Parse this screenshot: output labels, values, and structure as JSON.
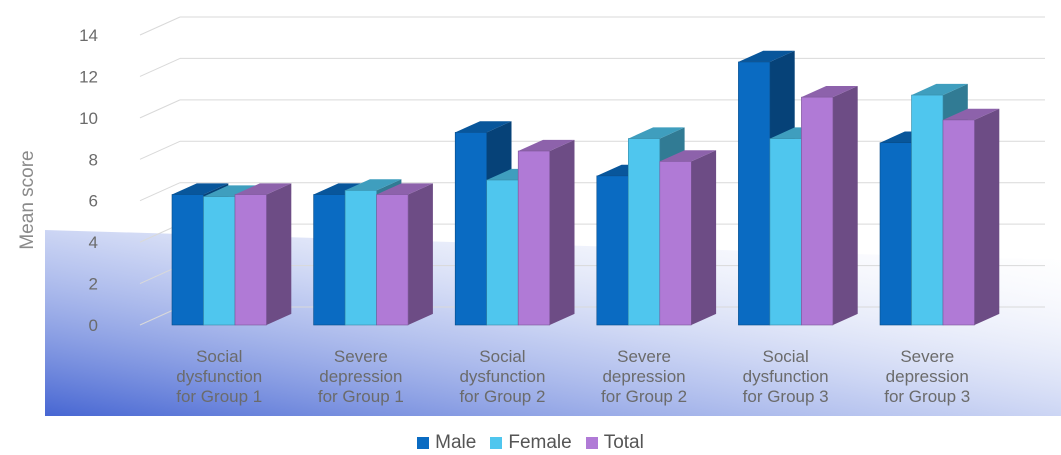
{
  "chart_data": {
    "type": "bar",
    "ylabel": "Mean score",
    "ylim": [
      0,
      14
    ],
    "yticks": [
      "0",
      "2",
      "4",
      "6",
      "8",
      "10",
      "12",
      "14"
    ],
    "categories": [
      [
        "Social",
        "dysfunction",
        "for Group 1"
      ],
      [
        "Severe",
        "depression",
        "for Group 1"
      ],
      [
        "Social",
        "dysfunction",
        "for Group 2"
      ],
      [
        "Severe",
        "depression",
        "for Group 2"
      ],
      [
        "Social",
        "dysfunction",
        "for Group 3"
      ],
      [
        "Severe",
        "depression",
        "for Group 3"
      ]
    ],
    "series": [
      {
        "name": "Male",
        "color": "#0a6bc2",
        "values": [
          6.3,
          6.3,
          9.3,
          7.2,
          12.7,
          8.8
        ]
      },
      {
        "name": "Female",
        "color": "#4fc6ee",
        "values": [
          6.2,
          6.5,
          7.0,
          9.0,
          9.0,
          11.1
        ]
      },
      {
        "name": "Total",
        "color": "#b07ad6",
        "values": [
          6.3,
          6.3,
          8.4,
          7.9,
          11.0,
          9.9
        ]
      }
    ],
    "grid": true,
    "legend": "bottom-center",
    "style": "3d"
  }
}
